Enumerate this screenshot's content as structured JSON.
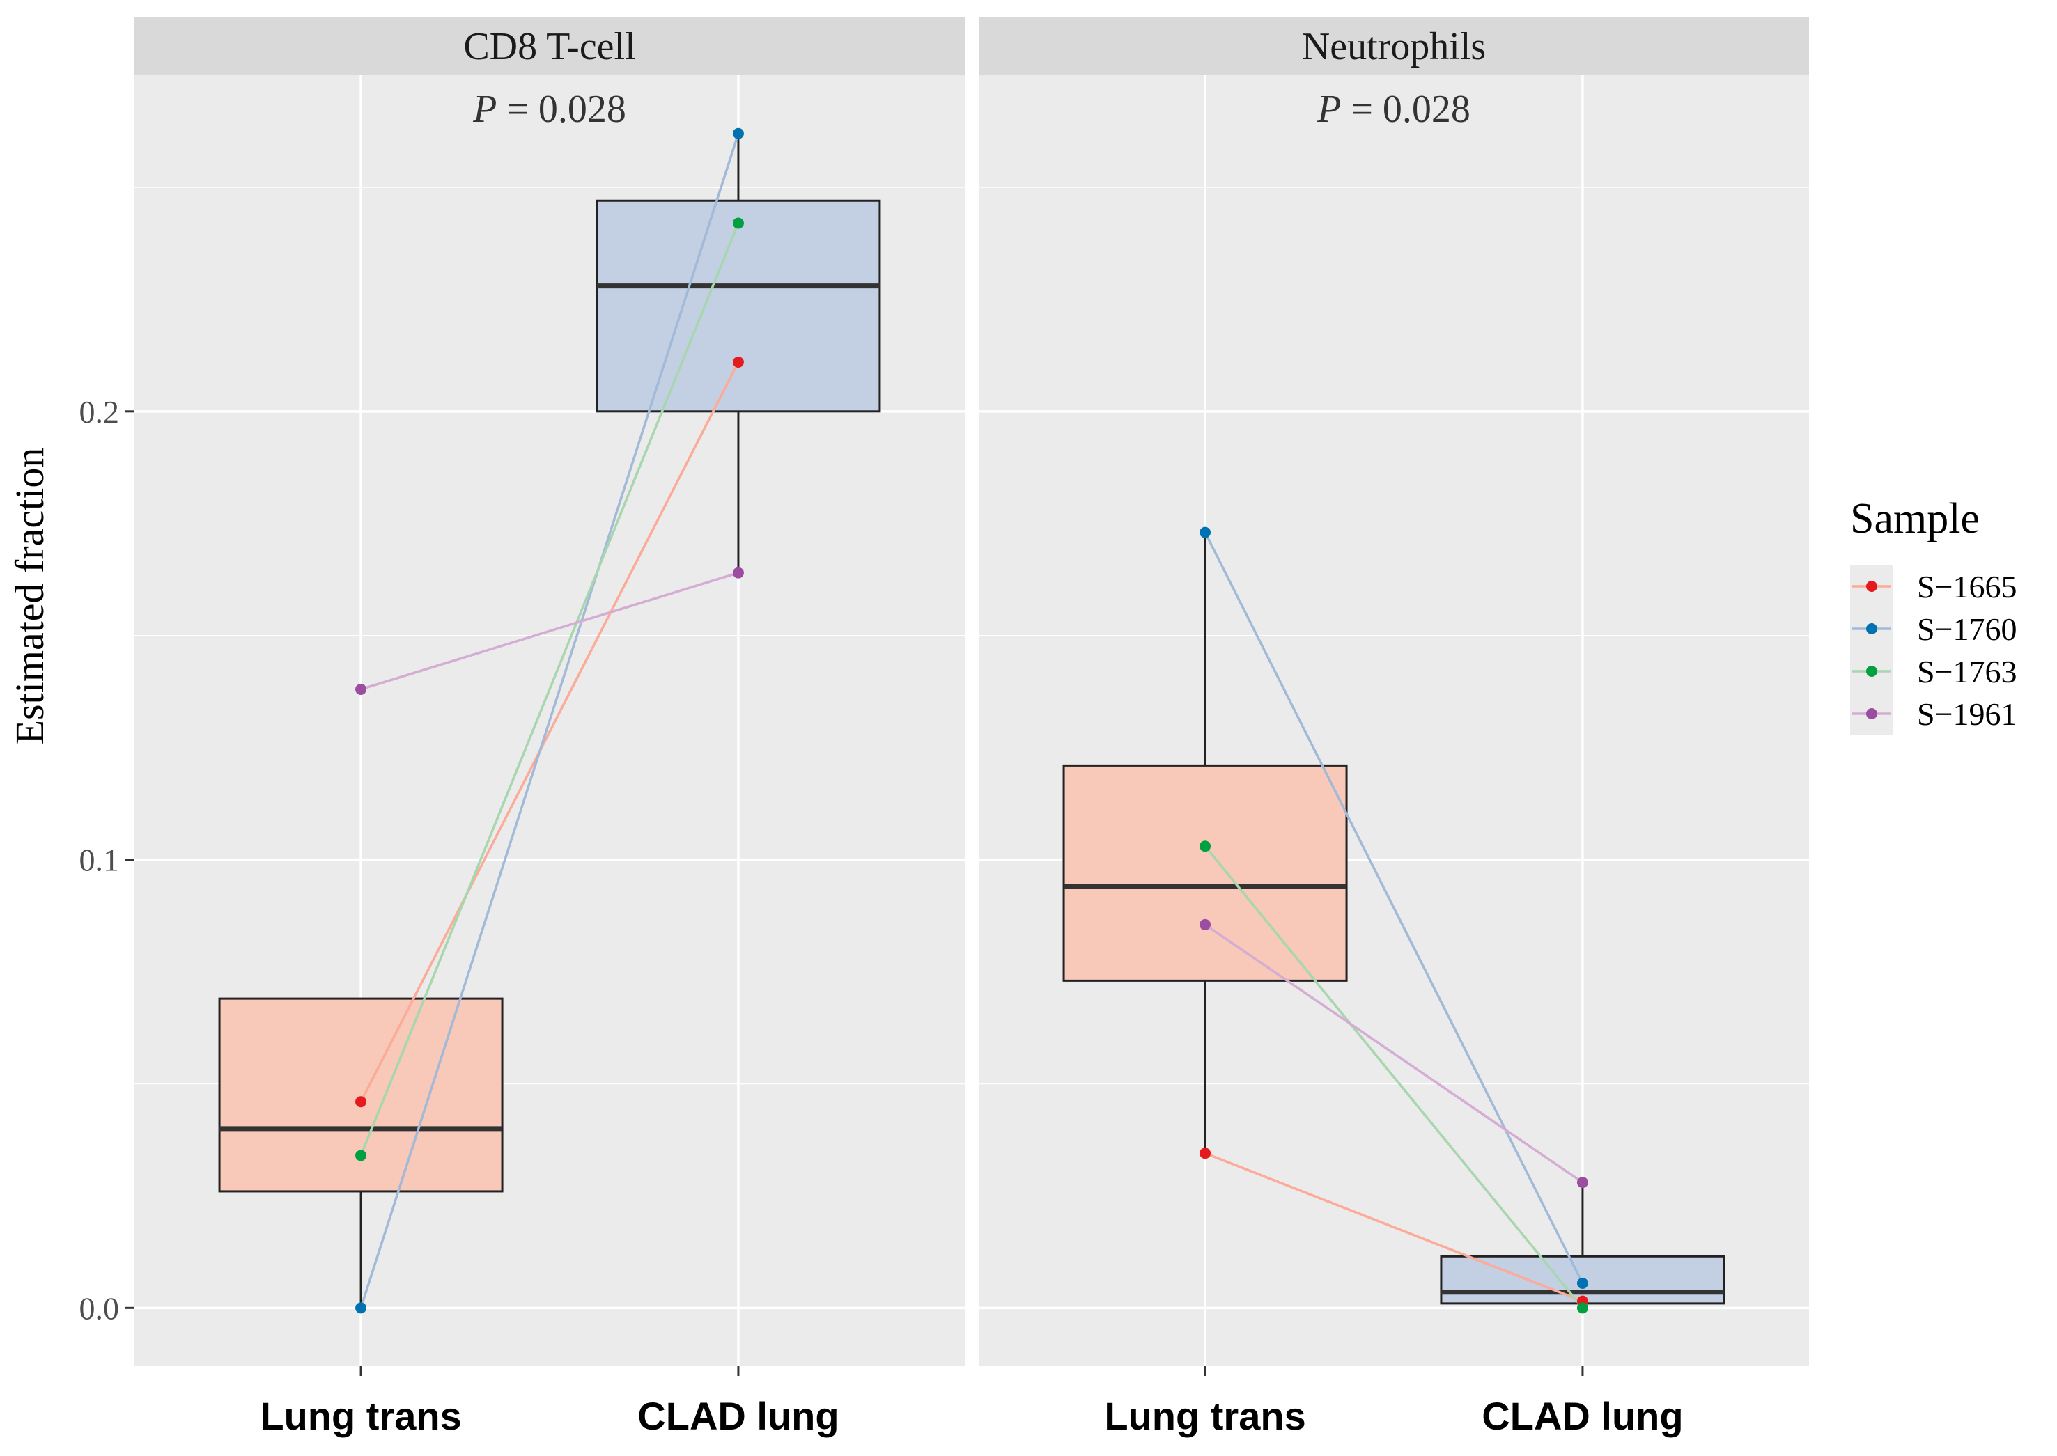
{
  "chart_data": {
    "type": "box",
    "ylabel": "Estimated fraction",
    "ylim": [
      -0.013,
      0.275
    ],
    "yticks": [
      0.0,
      0.1,
      0.2
    ],
    "ytick_labels": [
      "0.0",
      "0.1",
      "0.2"
    ],
    "categories": [
      "Lung trans",
      "CLAD lung"
    ],
    "group_colors": {
      "Lung trans": "#f8c8b8",
      "CLAD lung": "#c3d0e4"
    },
    "legend": {
      "title": "Sample",
      "position": "right",
      "entries": [
        {
          "name": "S−1665",
          "color": "#e41a1c"
        },
        {
          "name": "S−1760",
          "color": "#0072b2"
        },
        {
          "name": "S−1763",
          "color": "#00a040"
        },
        {
          "name": "S−1961",
          "color": "#9b4ea1"
        }
      ]
    },
    "line_colors": [
      "#fbab98",
      "#a2b9d8",
      "#a8d6ae",
      "#d4acd4"
    ],
    "panels": [
      {
        "title": "CD8 T-cell",
        "p_prefix": "P",
        "p_value": " = 0.028",
        "boxes": [
          {
            "category": "Lung trans",
            "q1": 0.026,
            "median": 0.04,
            "q3": 0.069,
            "whisker_low": 0.0,
            "whisker_high": 0.069
          },
          {
            "category": "CLAD lung",
            "q1": 0.2,
            "median": 0.228,
            "q3": 0.247,
            "whisker_low": 0.164,
            "whisker_high": 0.262
          }
        ],
        "series": [
          {
            "name": "S−1665",
            "values": [
              0.046,
              0.211
            ]
          },
          {
            "name": "S−1760",
            "values": [
              0.0,
              0.262
            ]
          },
          {
            "name": "S−1763",
            "values": [
              0.034,
              0.242
            ]
          },
          {
            "name": "S−1961",
            "values": [
              0.138,
              0.164
            ]
          }
        ]
      },
      {
        "title": "Neutrophils",
        "p_prefix": "P",
        "p_value": " = 0.028",
        "boxes": [
          {
            "category": "Lung trans",
            "q1": 0.073,
            "median": 0.094,
            "q3": 0.121,
            "whisker_low": 0.0345,
            "whisker_high": 0.173
          },
          {
            "category": "CLAD lung",
            "q1": 0.001,
            "median": 0.0035,
            "q3": 0.0115,
            "whisker_low": 0.0,
            "whisker_high": 0.028
          }
        ],
        "series": [
          {
            "name": "S−1665",
            "values": [
              0.0345,
              0.0015
            ]
          },
          {
            "name": "S−1760",
            "values": [
              0.173,
              0.0055
            ]
          },
          {
            "name": "S−1763",
            "values": [
              0.103,
              0.0
            ]
          },
          {
            "name": "S−1961",
            "values": [
              0.0855,
              0.028
            ]
          }
        ]
      }
    ]
  }
}
